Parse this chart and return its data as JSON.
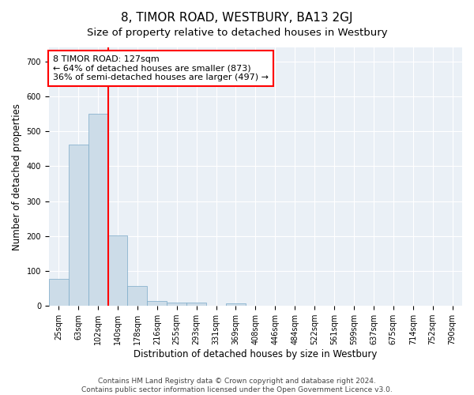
{
  "title": "8, TIMOR ROAD, WESTBURY, BA13 2GJ",
  "subtitle": "Size of property relative to detached houses in Westbury",
  "xlabel": "Distribution of detached houses by size in Westbury",
  "ylabel": "Number of detached properties",
  "categories": [
    "25sqm",
    "63sqm",
    "102sqm",
    "140sqm",
    "178sqm",
    "216sqm",
    "255sqm",
    "293sqm",
    "331sqm",
    "369sqm",
    "408sqm",
    "446sqm",
    "484sqm",
    "522sqm",
    "561sqm",
    "599sqm",
    "637sqm",
    "675sqm",
    "714sqm",
    "752sqm",
    "790sqm"
  ],
  "values": [
    78,
    462,
    551,
    202,
    57,
    15,
    9,
    9,
    0,
    8,
    0,
    0,
    0,
    0,
    0,
    0,
    0,
    0,
    0,
    0,
    0
  ],
  "bar_color": "#ccdce8",
  "bar_edge_color": "#7baac8",
  "property_line_x": 2.5,
  "property_line_color": "red",
  "annotation_text": "8 TIMOR ROAD: 127sqm\n← 64% of detached houses are smaller (873)\n36% of semi-detached houses are larger (497) →",
  "annotation_box_color": "white",
  "annotation_box_edge_color": "red",
  "ylim": [
    0,
    740
  ],
  "yticks": [
    0,
    100,
    200,
    300,
    400,
    500,
    600,
    700
  ],
  "footer_line1": "Contains HM Land Registry data © Crown copyright and database right 2024.",
  "footer_line2": "Contains public sector information licensed under the Open Government Licence v3.0.",
  "background_color": "#eaf0f6",
  "grid_color": "white",
  "title_fontsize": 11,
  "subtitle_fontsize": 9.5,
  "axis_label_fontsize": 8.5,
  "tick_fontsize": 7,
  "footer_fontsize": 6.5,
  "annotation_fontsize": 8
}
